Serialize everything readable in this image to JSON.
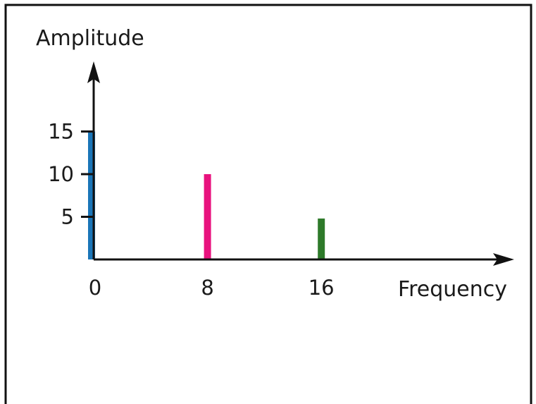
{
  "chart_data": {
    "type": "bar",
    "title": "",
    "xlabel": "Frequency",
    "ylabel": "Amplitude",
    "categories": [
      0,
      8,
      16
    ],
    "values": [
      15,
      10,
      4.8
    ],
    "bar_colors": [
      "#1a75b8",
      "#e8127e",
      "#2e7a2a"
    ],
    "x_ticks": [
      "0",
      "8",
      "16"
    ],
    "y_ticks": [
      "5",
      "10",
      "15"
    ],
    "x_range": [
      0,
      28
    ],
    "y_range": [
      0,
      23
    ],
    "grid": false,
    "legend": "none",
    "axis_color": "#111111",
    "frame_color": "#111111"
  }
}
